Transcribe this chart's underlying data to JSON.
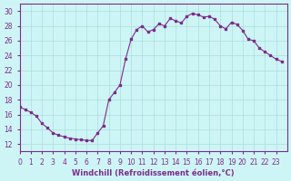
{
  "x": [
    0,
    0.5,
    1,
    1.5,
    2,
    2.5,
    3,
    3.5,
    4,
    4.5,
    5,
    5.5,
    6,
    6.5,
    7,
    7.5,
    8,
    8.5,
    9,
    9.5,
    10,
    10.5,
    11,
    11.5,
    12,
    12.5,
    13,
    13.5,
    14,
    14.5,
    15,
    15.5,
    16,
    16.5,
    17,
    17.5,
    18,
    18.5,
    19,
    19.5,
    20,
    20.5,
    21,
    21.5,
    22,
    22.5,
    23,
    23.5
  ],
  "y": [
    17,
    16.7,
    16.3,
    15.8,
    14.8,
    14.2,
    13.5,
    13.2,
    13.0,
    12.8,
    12.7,
    12.6,
    12.5,
    12.5,
    13.5,
    14.5,
    18.0,
    19.0,
    20.0,
    23.5,
    26.2,
    27.5,
    28.0,
    27.2,
    27.5,
    28.3,
    28.0,
    29.0,
    28.7,
    28.4,
    29.3,
    29.7,
    29.5,
    29.2,
    29.3,
    28.9,
    28.0,
    27.6,
    28.5,
    28.2,
    27.4,
    26.2,
    26.0,
    25.0,
    24.5,
    24.0,
    23.5,
    23.2
  ],
  "line_color": "#7b2d8b",
  "marker_color": "#7b2d8b",
  "bg_color": "#cef5f5",
  "grid_color": "#aadddd",
  "axis_color": "#7b2d8b",
  "xlabel": "Windchill (Refroidissement éolien,°C)",
  "ylabel": "",
  "ylim": [
    11,
    31
  ],
  "xlim": [
    0,
    24
  ],
  "yticks": [
    12,
    14,
    16,
    18,
    20,
    22,
    24,
    26,
    28,
    30
  ],
  "xticks": [
    0,
    1,
    2,
    3,
    4,
    5,
    6,
    7,
    8,
    9,
    10,
    11,
    12,
    13,
    14,
    15,
    16,
    17,
    18,
    19,
    20,
    21,
    22,
    23
  ]
}
